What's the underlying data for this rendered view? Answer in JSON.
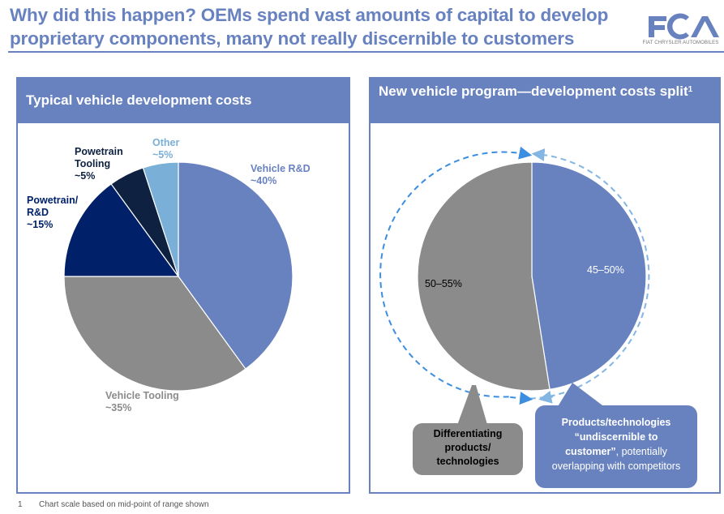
{
  "title": "Why did this happen? OEMs spend vast amounts of capital to develop proprietary components, many not really discernible to customers",
  "logo": {
    "mark": "FCA",
    "subtitle": "FIAT CHRYSLER AUTOMOBILES",
    "icon": "fca-logo-icon"
  },
  "colors": {
    "accent": "#6882c0",
    "gray": "#8a8b8a",
    "navy": "#002169",
    "dark_navy": "#0e2141",
    "light_blue": "#7aafd7",
    "arrow_blue": "#3c8ee0"
  },
  "footnote": {
    "number": "1",
    "text": "Chart scale based on mid-point of range shown"
  },
  "chart_data": [
    {
      "type": "pie",
      "title": "Typical vehicle development costs",
      "slices": [
        {
          "name": "Vehicle R&D",
          "value": 40,
          "label": "~40%",
          "color": "#6882c0"
        },
        {
          "name": "Vehicle Tooling",
          "value": 35,
          "label": "~35%",
          "color": "#8a8b8a"
        },
        {
          "name": "Powetrain/ R&D",
          "value": 15,
          "label": "~15%",
          "color": "#002169"
        },
        {
          "name": "Powetrain Tooling",
          "value": 5,
          "label": "~5%",
          "color": "#0e2141"
        },
        {
          "name": "Other",
          "value": 5,
          "label": "~5%",
          "color": "#7aafd7"
        }
      ],
      "start": "12 o'clock",
      "direction": "clockwise"
    },
    {
      "type": "pie",
      "title": "New vehicle program—development costs split",
      "title_footnote": "1",
      "slices": [
        {
          "name": "Products/technologies undiscernible to customer",
          "value": 47.5,
          "label": "45–50%",
          "color": "#6882c0"
        },
        {
          "name": "Differentiating products/technologies",
          "value": 52.5,
          "label": "50–55%",
          "color": "#8a8b8a"
        }
      ],
      "callouts": {
        "gray": [
          "Differentiating",
          "products/",
          "technologies"
        ],
        "blue_bold_1": "Products/technologies",
        "blue_bold_2": "“undiscernible to",
        "blue_bold_3": "customer”",
        "blue_rest_3": ", potentially",
        "blue_line_4": "overlapping with competitors"
      }
    }
  ]
}
